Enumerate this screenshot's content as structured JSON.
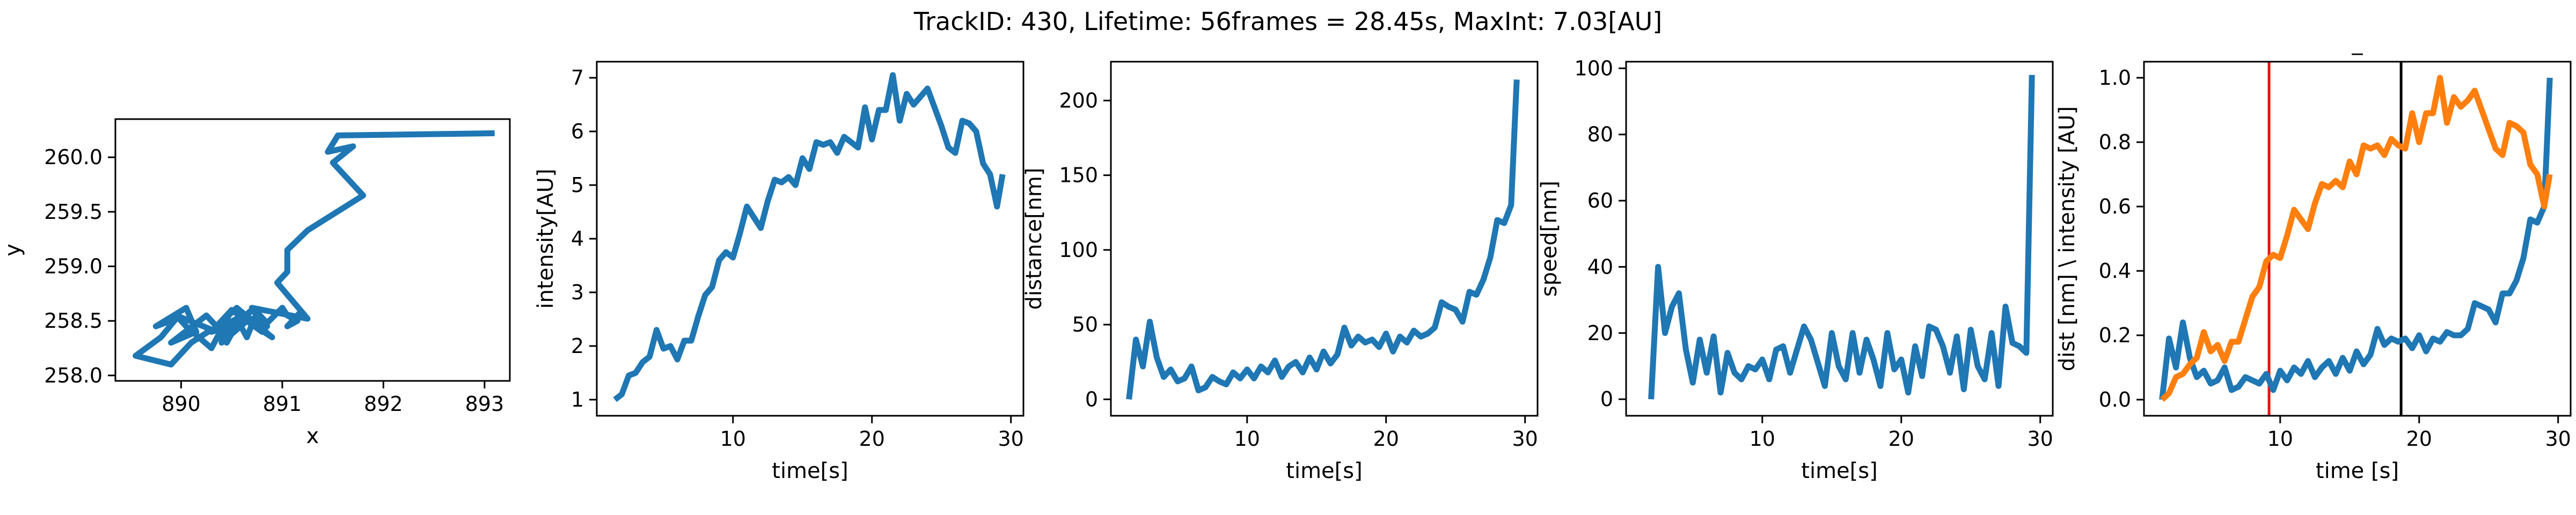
{
  "figure": {
    "suptitle": "TrackID: 430, Lifetime: 56frames = 28.45s, MaxInt: 7.03[AU]"
  },
  "chart_data": [
    {
      "type": "line",
      "xlabel": "x",
      "ylabel": "y",
      "xlim": [
        889.35,
        893.25
      ],
      "ylim": [
        257.95,
        260.35
      ],
      "xticks": [
        890,
        891,
        892,
        893
      ],
      "yticks": [
        258.0,
        258.5,
        259.0,
        259.5,
        260.0
      ],
      "tick_format_y": 1,
      "color": "#1f77b4",
      "series": [
        {
          "x": [
            893.1,
            891.55,
            891.45,
            891.7,
            891.5,
            891.8,
            891.25,
            891.05,
            891.05,
            890.95,
            891.25,
            890.7,
            890.85,
            890.6,
            890.4,
            890.55,
            890.3,
            890.5,
            890.85,
            890.6,
            890.4,
            890.65,
            890.9,
            890.55,
            890.35,
            890.45,
            890.6,
            890.8,
            890.5,
            890.3,
            890.05,
            889.95,
            890.3,
            890.1,
            889.9,
            889.55,
            889.8,
            889.95,
            889.75,
            890.05,
            890.15,
            889.9,
            890.25,
            890.45,
            890.7,
            890.5,
            890.3,
            890.55,
            890.65,
            890.75,
            890.85,
            891.0,
            891.05,
            891.15,
            891.05,
            891.2
          ],
          "y": [
            260.22,
            260.2,
            260.05,
            260.1,
            259.95,
            259.65,
            259.33,
            259.15,
            258.95,
            258.85,
            258.52,
            258.62,
            258.38,
            258.55,
            258.32,
            258.48,
            258.4,
            258.6,
            258.45,
            258.55,
            258.3,
            258.5,
            258.35,
            258.62,
            258.45,
            258.3,
            258.55,
            258.4,
            258.6,
            258.25,
            258.45,
            258.55,
            258.42,
            258.3,
            258.1,
            258.18,
            258.35,
            258.52,
            258.45,
            258.62,
            258.4,
            258.3,
            258.55,
            258.35,
            258.6,
            258.45,
            258.4,
            258.52,
            258.35,
            258.58,
            258.48,
            258.62,
            258.55,
            258.5,
            258.45,
            258.6
          ]
        }
      ]
    },
    {
      "type": "line",
      "xlabel": "time[s]",
      "ylabel": "intensity[AU]",
      "xlim": [
        0.2,
        30.9
      ],
      "ylim": [
        0.7,
        7.3
      ],
      "xticks": [
        10,
        20,
        30
      ],
      "yticks": [
        1,
        2,
        3,
        4,
        5,
        6,
        7
      ],
      "tick_format_y": 0,
      "color": "#1f77b4",
      "series": [
        {
          "x": [
            1.5,
            2.0,
            2.5,
            3.0,
            3.5,
            4.0,
            4.5,
            5.0,
            5.5,
            6.0,
            6.5,
            7.0,
            7.5,
            8.0,
            8.5,
            9.0,
            9.5,
            10.0,
            10.5,
            11.0,
            11.5,
            12.0,
            12.5,
            13.0,
            13.5,
            14.0,
            14.5,
            15.0,
            15.5,
            16.0,
            16.5,
            17.0,
            17.5,
            18.0,
            18.5,
            19.0,
            19.5,
            20.0,
            20.5,
            21.0,
            21.5,
            22.0,
            22.5,
            23.0,
            23.5,
            24.0,
            24.5,
            25.0,
            25.5,
            26.0,
            26.5,
            27.0,
            27.5,
            28.0,
            28.5,
            29.0,
            29.4
          ],
          "y": [
            1.0,
            1.1,
            1.45,
            1.5,
            1.7,
            1.8,
            2.3,
            1.95,
            2.0,
            1.75,
            2.1,
            2.1,
            2.55,
            2.95,
            3.1,
            3.6,
            3.75,
            3.65,
            4.1,
            4.6,
            4.4,
            4.2,
            4.7,
            5.1,
            5.05,
            5.15,
            5.0,
            5.5,
            5.3,
            5.8,
            5.75,
            5.8,
            5.6,
            5.9,
            5.8,
            5.7,
            6.45,
            5.85,
            6.4,
            6.4,
            7.05,
            6.2,
            6.7,
            6.5,
            6.65,
            6.8,
            6.45,
            6.1,
            5.7,
            5.6,
            6.2,
            6.15,
            6.0,
            5.4,
            5.2,
            4.6,
            5.2
          ]
        }
      ]
    },
    {
      "type": "line",
      "xlabel": "time[s]",
      "ylabel": "distance[nm]",
      "xlim": [
        0.2,
        30.9
      ],
      "ylim": [
        -11,
        226
      ],
      "xticks": [
        10,
        20,
        30
      ],
      "yticks": [
        0,
        50,
        100,
        150,
        200
      ],
      "tick_format_y": 0,
      "color": "#1f77b4",
      "series": [
        {
          "x": [
            1.5,
            2.0,
            2.5,
            3.0,
            3.5,
            4.0,
            4.5,
            5.0,
            5.5,
            6.0,
            6.5,
            7.0,
            7.5,
            8.0,
            8.5,
            9.0,
            9.5,
            10.0,
            10.5,
            11.0,
            11.5,
            12.0,
            12.5,
            13.0,
            13.5,
            14.0,
            14.5,
            15.0,
            15.5,
            16.0,
            16.5,
            17.0,
            17.5,
            18.0,
            18.5,
            19.0,
            19.5,
            20.0,
            20.5,
            21.0,
            21.5,
            22.0,
            22.5,
            23.0,
            23.5,
            24.0,
            24.5,
            25.0,
            25.5,
            26.0,
            26.5,
            27.0,
            27.5,
            28.0,
            28.5,
            29.0,
            29.4
          ],
          "y": [
            0,
            40,
            22,
            52,
            28,
            15,
            20,
            12,
            14,
            22,
            6,
            8,
            15,
            12,
            10,
            18,
            14,
            20,
            14,
            22,
            18,
            26,
            15,
            22,
            25,
            18,
            28,
            20,
            32,
            24,
            30,
            48,
            36,
            42,
            38,
            40,
            35,
            44,
            32,
            42,
            38,
            46,
            42,
            44,
            48,
            65,
            62,
            60,
            52,
            72,
            70,
            80,
            95,
            120,
            118,
            130,
            214
          ]
        }
      ]
    },
    {
      "type": "line",
      "xlabel": "time[s]",
      "ylabel": "speed[nm]",
      "xlim": [
        0.2,
        30.9
      ],
      "ylim": [
        -5,
        102
      ],
      "xticks": [
        10,
        20,
        30
      ],
      "yticks": [
        0,
        20,
        40,
        60,
        80,
        100
      ],
      "tick_format_y": 0,
      "color": "#1f77b4",
      "series": [
        {
          "x": [
            2.0,
            2.5,
            3.0,
            3.5,
            4.0,
            4.5,
            5.0,
            5.5,
            6.0,
            6.5,
            7.0,
            7.5,
            8.0,
            8.5,
            9.0,
            9.5,
            10.0,
            10.5,
            11.0,
            11.5,
            12.0,
            12.5,
            13.0,
            13.5,
            14.0,
            14.5,
            15.0,
            15.5,
            16.0,
            16.5,
            17.0,
            17.5,
            18.0,
            18.5,
            19.0,
            19.5,
            20.0,
            20.5,
            21.0,
            21.5,
            22.0,
            22.5,
            23.0,
            23.5,
            24.0,
            24.5,
            25.0,
            25.5,
            26.0,
            26.5,
            27.0,
            27.5,
            28.0,
            28.5,
            29.0,
            29.4
          ],
          "y": [
            0,
            40,
            20,
            28,
            32,
            15,
            5,
            18,
            8,
            19,
            2,
            14,
            8,
            6,
            10,
            9,
            12,
            6,
            15,
            16,
            8,
            15,
            22,
            18,
            11,
            4,
            20,
            10,
            6,
            20,
            8,
            18,
            12,
            4,
            20,
            9,
            12,
            2,
            16,
            7,
            22,
            21,
            16,
            8,
            19,
            3,
            21,
            10,
            6,
            20,
            4,
            28,
            17,
            16,
            14,
            98
          ]
        }
      ]
    },
    {
      "type": "line",
      "title": "_",
      "xlabel": "time [s]",
      "ylabel": "dist [nm] \\ intensity [AU]",
      "xlim": [
        0.2,
        30.9
      ],
      "ylim": [
        -0.05,
        1.05
      ],
      "xticks": [
        10,
        20,
        30
      ],
      "yticks": [
        0.0,
        0.2,
        0.4,
        0.6,
        0.8,
        1.0
      ],
      "tick_format_y": 1,
      "vlines": [
        {
          "x": 9.2,
          "color": "#e8120c"
        },
        {
          "x": 18.7,
          "color": "#000000"
        }
      ],
      "series": [
        {
          "color": "#1f77b4",
          "x": [
            1.5,
            2.0,
            2.5,
            3.0,
            3.5,
            4.0,
            4.5,
            5.0,
            5.5,
            6.0,
            6.5,
            7.0,
            7.5,
            8.0,
            8.5,
            9.0,
            9.5,
            10.0,
            10.5,
            11.0,
            11.5,
            12.0,
            12.5,
            13.0,
            13.5,
            14.0,
            14.5,
            15.0,
            15.5,
            16.0,
            16.5,
            17.0,
            17.5,
            18.0,
            18.5,
            19.0,
            19.5,
            20.0,
            20.5,
            21.0,
            21.5,
            22.0,
            22.5,
            23.0,
            23.5,
            24.0,
            24.5,
            25.0,
            25.5,
            26.0,
            26.5,
            27.0,
            27.5,
            28.0,
            28.5,
            29.0,
            29.4
          ],
          "y": [
            0.0,
            0.19,
            0.1,
            0.24,
            0.13,
            0.07,
            0.09,
            0.05,
            0.06,
            0.1,
            0.03,
            0.04,
            0.07,
            0.06,
            0.05,
            0.08,
            0.03,
            0.09,
            0.06,
            0.1,
            0.08,
            0.12,
            0.07,
            0.1,
            0.12,
            0.08,
            0.13,
            0.09,
            0.15,
            0.11,
            0.14,
            0.22,
            0.17,
            0.19,
            0.18,
            0.19,
            0.16,
            0.2,
            0.15,
            0.19,
            0.18,
            0.21,
            0.2,
            0.2,
            0.22,
            0.3,
            0.29,
            0.28,
            0.24,
            0.33,
            0.33,
            0.37,
            0.44,
            0.56,
            0.55,
            0.6,
            1.0
          ]
        },
        {
          "color": "#ff7f0e",
          "x": [
            1.5,
            2.0,
            2.5,
            3.0,
            3.5,
            4.0,
            4.5,
            5.0,
            5.5,
            6.0,
            6.5,
            7.0,
            7.5,
            8.0,
            8.5,
            9.0,
            9.5,
            10.0,
            10.5,
            11.0,
            11.5,
            12.0,
            12.5,
            13.0,
            13.5,
            14.0,
            14.5,
            15.0,
            15.5,
            16.0,
            16.5,
            17.0,
            17.5,
            18.0,
            18.5,
            19.0,
            19.5,
            20.0,
            20.5,
            21.0,
            21.5,
            22.0,
            22.5,
            23.0,
            23.5,
            24.0,
            24.5,
            25.0,
            25.5,
            26.0,
            26.5,
            27.0,
            27.5,
            28.0,
            28.5,
            29.0,
            29.4
          ],
          "y": [
            0.0,
            0.02,
            0.07,
            0.08,
            0.11,
            0.13,
            0.21,
            0.15,
            0.17,
            0.12,
            0.18,
            0.18,
            0.25,
            0.32,
            0.35,
            0.43,
            0.45,
            0.44,
            0.51,
            0.59,
            0.56,
            0.53,
            0.61,
            0.67,
            0.66,
            0.68,
            0.66,
            0.74,
            0.7,
            0.79,
            0.78,
            0.79,
            0.76,
            0.81,
            0.79,
            0.78,
            0.89,
            0.8,
            0.89,
            0.89,
            1.0,
            0.86,
            0.94,
            0.91,
            0.93,
            0.96,
            0.9,
            0.84,
            0.78,
            0.76,
            0.86,
            0.85,
            0.83,
            0.73,
            0.7,
            0.6,
            0.7
          ]
        }
      ]
    }
  ]
}
